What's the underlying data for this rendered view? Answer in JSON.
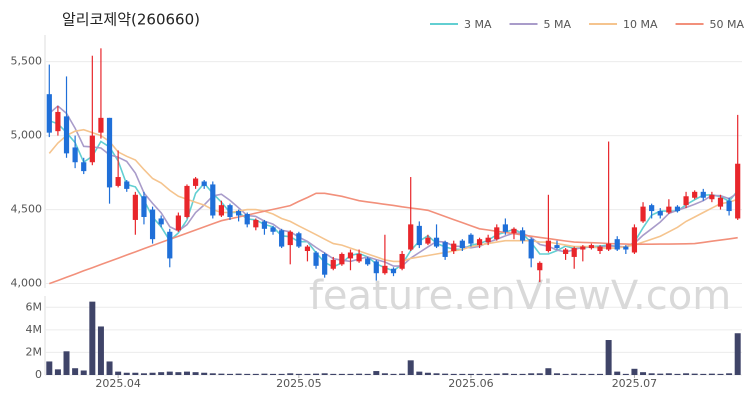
{
  "chart_data": [
    {
      "type": "candlestick",
      "title": "알리코제약(260660)",
      "watermark": "feature.enViewV.com",
      "up_color": "#e8262b",
      "down_color": "#1f6fd8",
      "grid": true,
      "legend": "top-right",
      "categories": [
        null,
        null,
        null,
        null,
        null,
        null,
        null,
        null,
        "2025.04",
        null,
        null,
        null,
        null,
        null,
        null,
        null,
        null,
        null,
        null,
        null,
        null,
        null,
        null,
        null,
        null,
        null,
        null,
        null,
        null,
        "2025.05",
        null,
        null,
        null,
        null,
        null,
        null,
        null,
        null,
        null,
        null,
        null,
        null,
        null,
        null,
        null,
        null,
        null,
        null,
        null,
        "2025.06",
        null,
        null,
        null,
        null,
        null,
        null,
        null,
        null,
        null,
        null,
        null,
        null,
        null,
        null,
        null,
        null,
        null,
        null,
        "2025.07",
        null,
        null,
        null,
        null,
        null,
        null,
        null,
        null,
        null,
        null,
        null,
        null
      ],
      "open": [
        5280,
        5030,
        5130,
        4920,
        4820,
        4820,
        5020,
        5120,
        4660,
        4690,
        4430,
        4590,
        4500,
        4440,
        4350,
        4360,
        4450,
        4660,
        4690,
        4670,
        4460,
        4530,
        4490,
        4470,
        4380,
        4420,
        4380,
        4360,
        4260,
        4340,
        4220,
        4210,
        4200,
        4100,
        4130,
        4170,
        4150,
        4170,
        4150,
        4070,
        4100,
        4100,
        4230,
        4390,
        4270,
        4310,
        4280,
        4220,
        4290,
        4330,
        4260,
        4280,
        4300,
        4400,
        4340,
        4360,
        4300,
        4090,
        4220,
        4260,
        4200,
        4180,
        4230,
        4240,
        4220,
        4230,
        4300,
        4250,
        4210,
        4420,
        4530,
        4490,
        4480,
        4520,
        4530,
        4580,
        4620,
        4570,
        4520,
        4560,
        4440
      ],
      "high": [
        5480,
        5200,
        5400,
        5000,
        4850,
        5540,
        5590,
        5120,
        4900,
        4700,
        4620,
        4620,
        4520,
        4460,
        4370,
        4480,
        4670,
        4720,
        4700,
        4690,
        4560,
        4540,
        4500,
        4480,
        4440,
        4430,
        4390,
        4370,
        4360,
        4350,
        4260,
        4220,
        4210,
        4180,
        4210,
        4230,
        4230,
        4180,
        4160,
        4330,
        4110,
        4220,
        4720,
        4420,
        4330,
        4400,
        4290,
        4290,
        4300,
        4340,
        4310,
        4330,
        4400,
        4440,
        4380,
        4380,
        4310,
        4150,
        4600,
        4290,
        4240,
        4250,
        4260,
        4270,
        4260,
        4960,
        4320,
        4260,
        4400,
        4550,
        4540,
        4510,
        4570,
        4530,
        4620,
        4630,
        4640,
        4620,
        4600,
        4580,
        5140
      ],
      "low": [
        4990,
        5000,
        4850,
        4780,
        4740,
        4800,
        4980,
        4540,
        4650,
        4620,
        4330,
        4400,
        4270,
        4380,
        4110,
        4350,
        4440,
        4640,
        4640,
        4440,
        4450,
        4430,
        4420,
        4380,
        4360,
        4330,
        4330,
        4240,
        4130,
        4240,
        4150,
        4100,
        4040,
        4090,
        4120,
        4090,
        4140,
        4120,
        4020,
        4060,
        4050,
        4090,
        4220,
        4240,
        4260,
        4240,
        4160,
        4200,
        4220,
        4250,
        4240,
        4260,
        4290,
        4330,
        4300,
        4270,
        4110,
        4010,
        4210,
        4230,
        4160,
        4100,
        4150,
        4230,
        4200,
        4220,
        4220,
        4200,
        4200,
        4410,
        4440,
        4440,
        4470,
        4480,
        4510,
        4570,
        4560,
        4550,
        4500,
        4460,
        4430
      ],
      "close": [
        5020,
        5160,
        4880,
        4820,
        4760,
        5000,
        5120,
        4650,
        4720,
        4640,
        4600,
        4450,
        4300,
        4400,
        4170,
        4460,
        4660,
        4710,
        4660,
        4460,
        4530,
        4450,
        4460,
        4400,
        4430,
        4370,
        4350,
        4250,
        4350,
        4250,
        4250,
        4120,
        4060,
        4160,
        4200,
        4210,
        4200,
        4130,
        4070,
        4120,
        4070,
        4200,
        4400,
        4260,
        4310,
        4250,
        4180,
        4270,
        4240,
        4270,
        4300,
        4310,
        4380,
        4350,
        4370,
        4290,
        4170,
        4140,
        4290,
        4240,
        4230,
        4240,
        4250,
        4260,
        4250,
        4270,
        4230,
        4230,
        4380,
        4520,
        4490,
        4460,
        4520,
        4490,
        4590,
        4620,
        4580,
        4600,
        4580,
        4490,
        4810
      ],
      "series": [
        {
          "name": "3 MA",
          "color": "#62cfd2",
          "values": [
            5100,
            5080,
            5020,
            4953,
            4820,
            4860,
            4960,
            4923,
            4830,
            4670,
            4653,
            4563,
            4450,
            4383,
            4290,
            4343,
            4430,
            4610,
            4677,
            4610,
            4550,
            4480,
            4480,
            4437,
            4430,
            4400,
            4383,
            4323,
            4317,
            4283,
            4283,
            4207,
            4143,
            4113,
            4140,
            4190,
            4203,
            4180,
            4133,
            4107,
            4087,
            4130,
            4223,
            4287,
            4323,
            4273,
            4247,
            4233,
            4230,
            4260,
            4270,
            4293,
            4330,
            4347,
            4367,
            4337,
            4277,
            4200,
            4200,
            4223,
            4253,
            4237,
            4240,
            4250,
            4253,
            4260,
            4250,
            4243,
            4280,
            4377,
            4463,
            4490,
            4490,
            4490,
            4533,
            4567,
            4597,
            4600,
            4587,
            4557,
            4627
          ]
        },
        {
          "name": "5 MA",
          "color": "#a99cca",
          "values": [
            5150,
            5200,
            5150,
            5050,
            4928,
            4924,
            4916,
            4870,
            4854,
            4826,
            4746,
            4612,
            4542,
            4478,
            4384,
            4356,
            4398,
            4480,
            4532,
            4592,
            4604,
            4562,
            4512,
            4460,
            4454,
            4422,
            4402,
            4360,
            4350,
            4314,
            4284,
            4244,
            4206,
            4168,
            4158,
            4150,
            4166,
            4180,
            4162,
            4146,
            4118,
            4118,
            4172,
            4210,
            4248,
            4284,
            4280,
            4254,
            4250,
            4242,
            4252,
            4278,
            4300,
            4322,
            4342,
            4340,
            4312,
            4264,
            4252,
            4226,
            4214,
            4228,
            4250,
            4244,
            4246,
            4254,
            4252,
            4248,
            4272,
            4326,
            4370,
            4416,
            4474,
            4496,
            4514,
            4536,
            4560,
            4596,
            4594,
            4574,
            4612
          ]
        },
        {
          "name": "10 MA",
          "color": "#f5c48e",
          "values": [
            4880,
            4950,
            5000,
            5030,
            5040,
            5020,
            5000,
            4960,
            4890,
            4860,
            4835,
            4770,
            4710,
            4680,
            4630,
            4590,
            4570,
            4550,
            4530,
            4500,
            4480,
            4480,
            4490,
            4500,
            4500,
            4490,
            4470,
            4440,
            4420,
            4390,
            4360,
            4330,
            4300,
            4270,
            4260,
            4240,
            4220,
            4200,
            4180,
            4160,
            4150,
            4150,
            4170,
            4180,
            4190,
            4200,
            4210,
            4220,
            4230,
            4250,
            4260,
            4270,
            4280,
            4290,
            4290,
            4290,
            4290,
            4280,
            4280,
            4270,
            4260,
            4250,
            4250,
            4250,
            4240,
            4240,
            4240,
            4250,
            4260,
            4280,
            4300,
            4320,
            4350,
            4380,
            4420,
            4450,
            4480,
            4510,
            4540,
            4550,
            4570
          ]
        },
        {
          "name": "50 MA",
          "color": "#f2907b",
          "values": [
            4000,
            4021,
            4043,
            4064,
            4086,
            4107,
            4129,
            4150,
            4171,
            4193,
            4214,
            4236,
            4257,
            4278,
            4299,
            4320,
            4341,
            4362,
            4383,
            4404,
            4425,
            4438,
            4450,
            4463,
            4476,
            4489,
            4501,
            4514,
            4527,
            4555,
            4582,
            4610,
            4610,
            4600,
            4590,
            4575,
            4560,
            4552,
            4544,
            4536,
            4528,
            4519,
            4511,
            4503,
            4495,
            4474,
            4453,
            4432,
            4412,
            4391,
            4370,
            4362,
            4353,
            4345,
            4337,
            4328,
            4320,
            4312,
            4304,
            4296,
            4288,
            4280,
            4278,
            4276,
            4274,
            4271,
            4269,
            4267,
            4265,
            4266,
            4266,
            4267,
            4267,
            4268,
            4269,
            4270,
            4278,
            4286,
            4294,
            4302,
            4310
          ]
        }
      ],
      "ylim": [
        3970,
        5680
      ],
      "yticks": [
        {
          "value": 4000,
          "label": "4,000"
        },
        {
          "value": 4500,
          "label": "4,500"
        },
        {
          "value": 5000,
          "label": "5,000"
        },
        {
          "value": 5500,
          "label": "5,500"
        }
      ]
    },
    {
      "type": "bar",
      "color": "#3f4468",
      "grid": true,
      "values": [
        1200000,
        500000,
        2100000,
        600000,
        400000,
        6500000,
        4300000,
        1200000,
        300000,
        200000,
        200000,
        150000,
        200000,
        250000,
        300000,
        250000,
        300000,
        250000,
        200000,
        150000,
        120000,
        100000,
        120000,
        100000,
        100000,
        120000,
        100000,
        100000,
        150000,
        100000,
        100000,
        120000,
        150000,
        100000,
        100000,
        100000,
        120000,
        100000,
        350000,
        150000,
        100000,
        120000,
        1300000,
        300000,
        200000,
        150000,
        120000,
        100000,
        100000,
        100000,
        100000,
        100000,
        120000,
        150000,
        100000,
        100000,
        150000,
        150000,
        600000,
        150000,
        100000,
        120000,
        100000,
        100000,
        100000,
        3100000,
        300000,
        100000,
        550000,
        250000,
        150000,
        120000,
        150000,
        100000,
        150000,
        120000,
        100000,
        120000,
        100000,
        150000,
        3700000
      ],
      "ylim": [
        0,
        7000000
      ],
      "yticks": [
        0,
        {
          "value": 2000000,
          "label": "2M"
        },
        {
          "value": 4000000,
          "label": "4M"
        },
        {
          "value": 6000000,
          "label": "6M"
        }
      ]
    }
  ]
}
